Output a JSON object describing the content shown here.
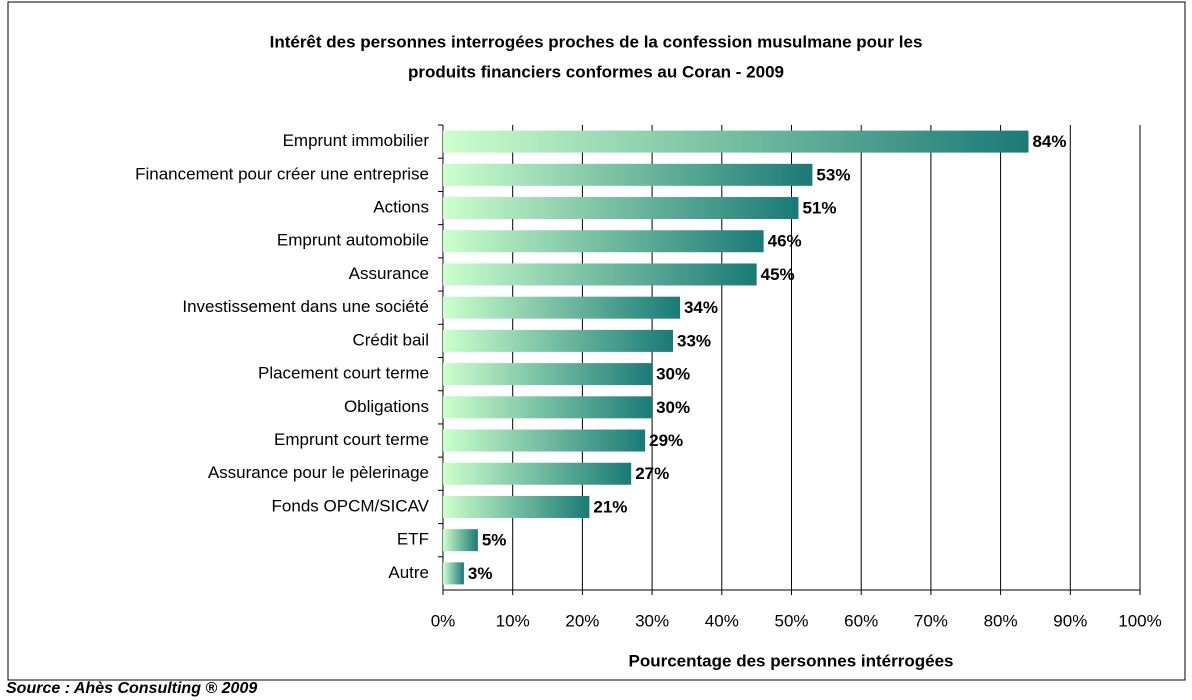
{
  "chart_data": {
    "type": "bar",
    "orientation": "horizontal",
    "title": [
      "Intérêt des personnes interrogées proches de la confession musulmane pour les",
      "produits financiers conformes au Coran - 2009"
    ],
    "xlabel": "Pourcentage des personnes intérrogées",
    "source": "Source : Ahès Consulting ® 2009",
    "categories": [
      "Emprunt immobilier",
      "Financement pour créer une entreprise",
      "Actions",
      "Emprunt automobile",
      "Assurance",
      "Investissement dans une société",
      "Crédit bail",
      "Placement court terme",
      "Obligations",
      "Emprunt court terme",
      "Assurance pour le pèlerinage",
      "Fonds OPCM/SICAV",
      "ETF",
      "Autre"
    ],
    "values": [
      84,
      53,
      51,
      46,
      45,
      34,
      33,
      30,
      30,
      29,
      27,
      21,
      5,
      3
    ],
    "value_labels": [
      "84%",
      "53%",
      "51%",
      "46%",
      "45%",
      "34%",
      "33%",
      "30%",
      "30%",
      "29%",
      "27%",
      "21%",
      "5%",
      "3%"
    ],
    "gradient": [
      "#ccffcc",
      "#1a7a76"
    ],
    "xlim": [
      0,
      100
    ],
    "xticks": [
      {
        "value": 0,
        "label": "0%"
      },
      {
        "value": 10,
        "label": "10%"
      },
      {
        "value": 20,
        "label": "20%"
      },
      {
        "value": 30,
        "label": "30%"
      },
      {
        "value": 40,
        "label": "40%"
      },
      {
        "value": 50,
        "label": "50%"
      },
      {
        "value": 60,
        "label": "60%"
      },
      {
        "value": 70,
        "label": "70%"
      },
      {
        "value": 80,
        "label": "80%"
      },
      {
        "value": 90,
        "label": "90%"
      },
      {
        "value": 100,
        "label": "100%"
      }
    ],
    "grid": true
  }
}
